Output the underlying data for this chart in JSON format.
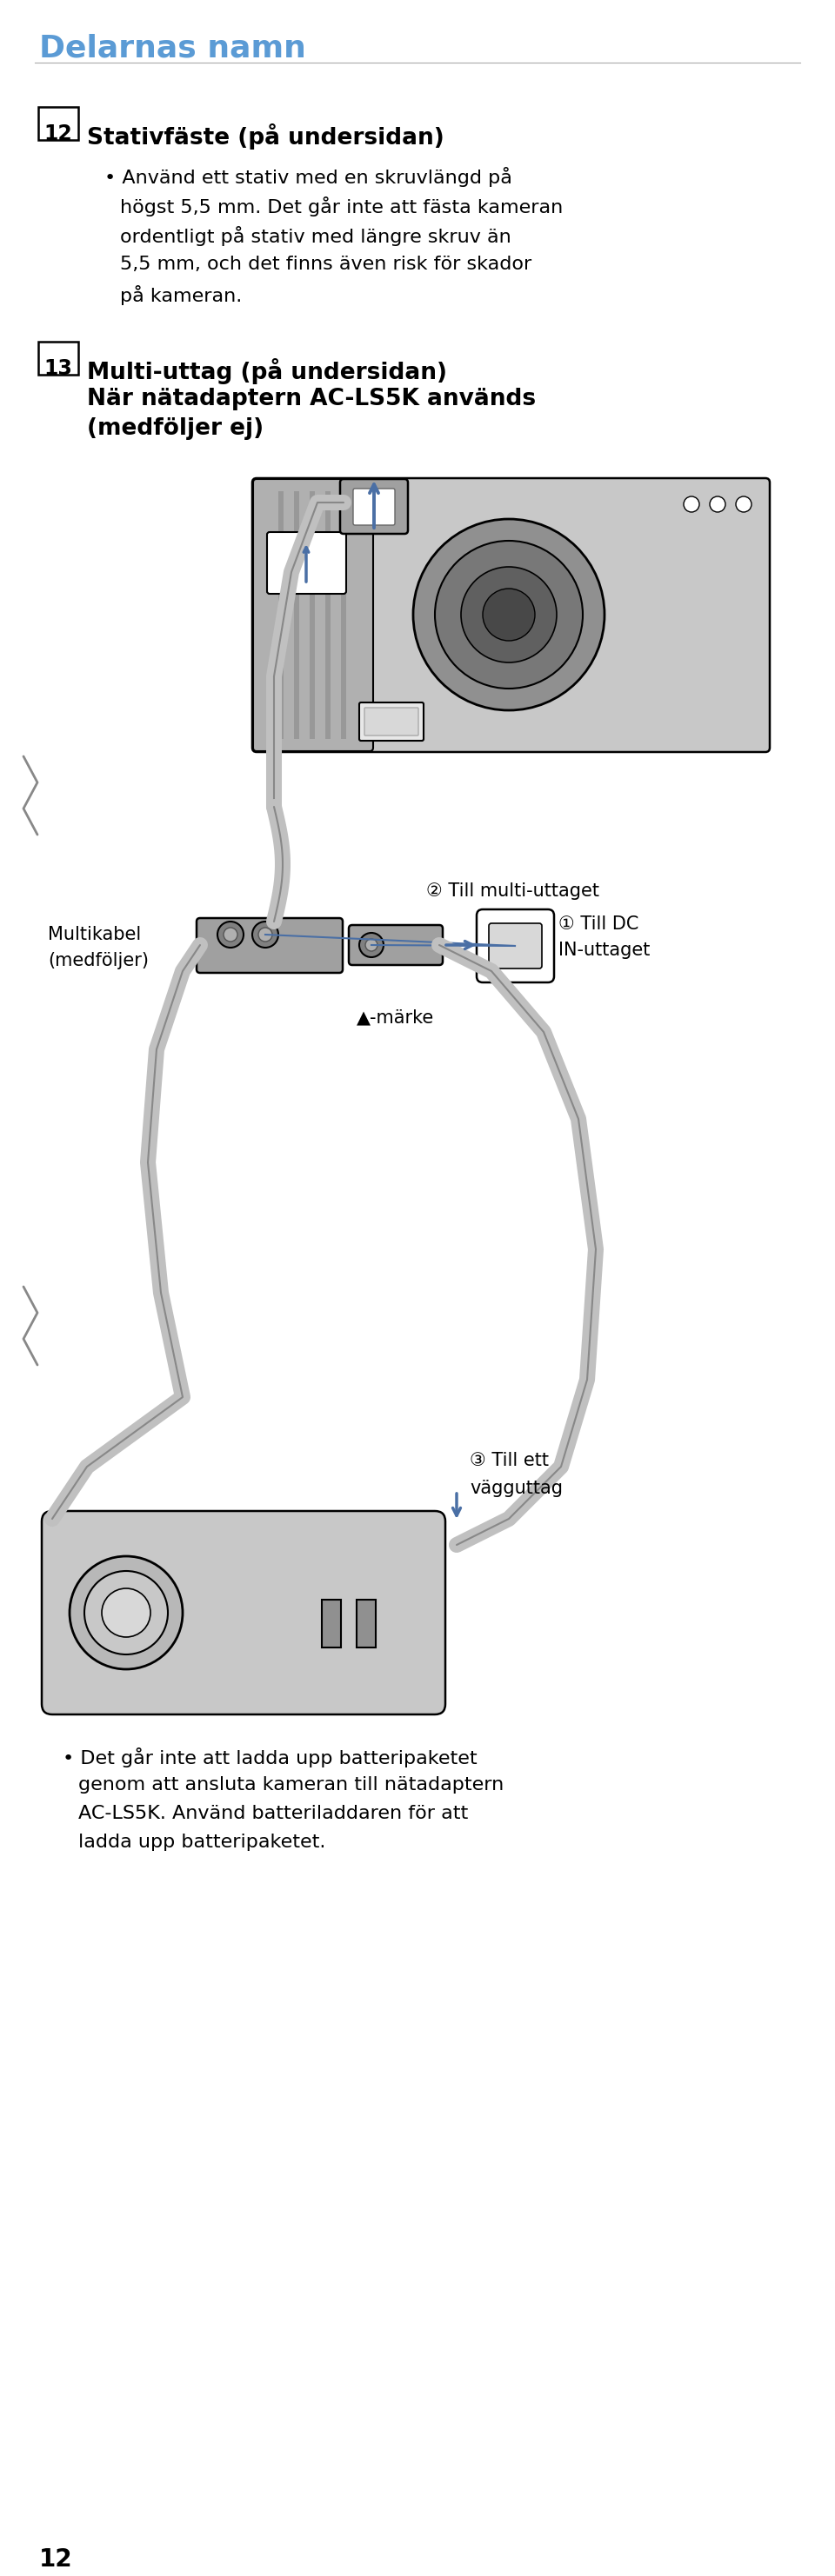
{
  "title": "Delarnas namn",
  "title_color": "#5b9bd5",
  "bg_color": "#ffffff",
  "text_color": "#000000",
  "page_number": "12",
  "section12_label": "12",
  "section12_heading": "Stativfäste (på undersidan)",
  "section12_bullet1_line1": "Använd ett stativ med en skruvlängd på",
  "section12_bullet1_line2": "högst 5,5 mm. Det går inte att fästa kameran",
  "section12_bullet1_line3": "ordentligt på stativ med längre skruv än",
  "section12_bullet1_line4": "5,5 mm, och det finns även risk för skador",
  "section12_bullet1_line5": "på kameran.",
  "section13_label": "13",
  "section13_heading_line1": "Multi-uttag (på undersidan)",
  "section13_heading_line2": "När nätadaptern AC-LS5K används",
  "section13_heading_line3": "(medföljer ej)",
  "label2_text": "② Till multi-uttaget",
  "label_multikabel_line1": "Multikabel",
  "label_multikabel_line2": "(medföljer)",
  "label_marke": "▲-märke",
  "label3_line1": "③ Till ett",
  "label3_line2": "vägguttag",
  "label1_line1": "① Till DC",
  "label1_line2": "IN-uttaget",
  "bottom_bullet_line1": "Det går inte att ladda upp batteripaketet",
  "bottom_bullet_line2": "genom att ansluta kameran till nätadaptern",
  "bottom_bullet_line3": "AC-LS5K. Använd batteriladdaren för att",
  "bottom_bullet_line4": "ladda upp batteripaketet.",
  "accent_color": "#4a6fa5",
  "arrow_color": "#4a6fa5",
  "cable_color": "#c0c0c0",
  "cable_outline": "#888888",
  "outline_color": "#000000",
  "gray_body": "#c8c8c8",
  "gray_dark": "#a0a0a0",
  "gray_light": "#e8e8e8"
}
